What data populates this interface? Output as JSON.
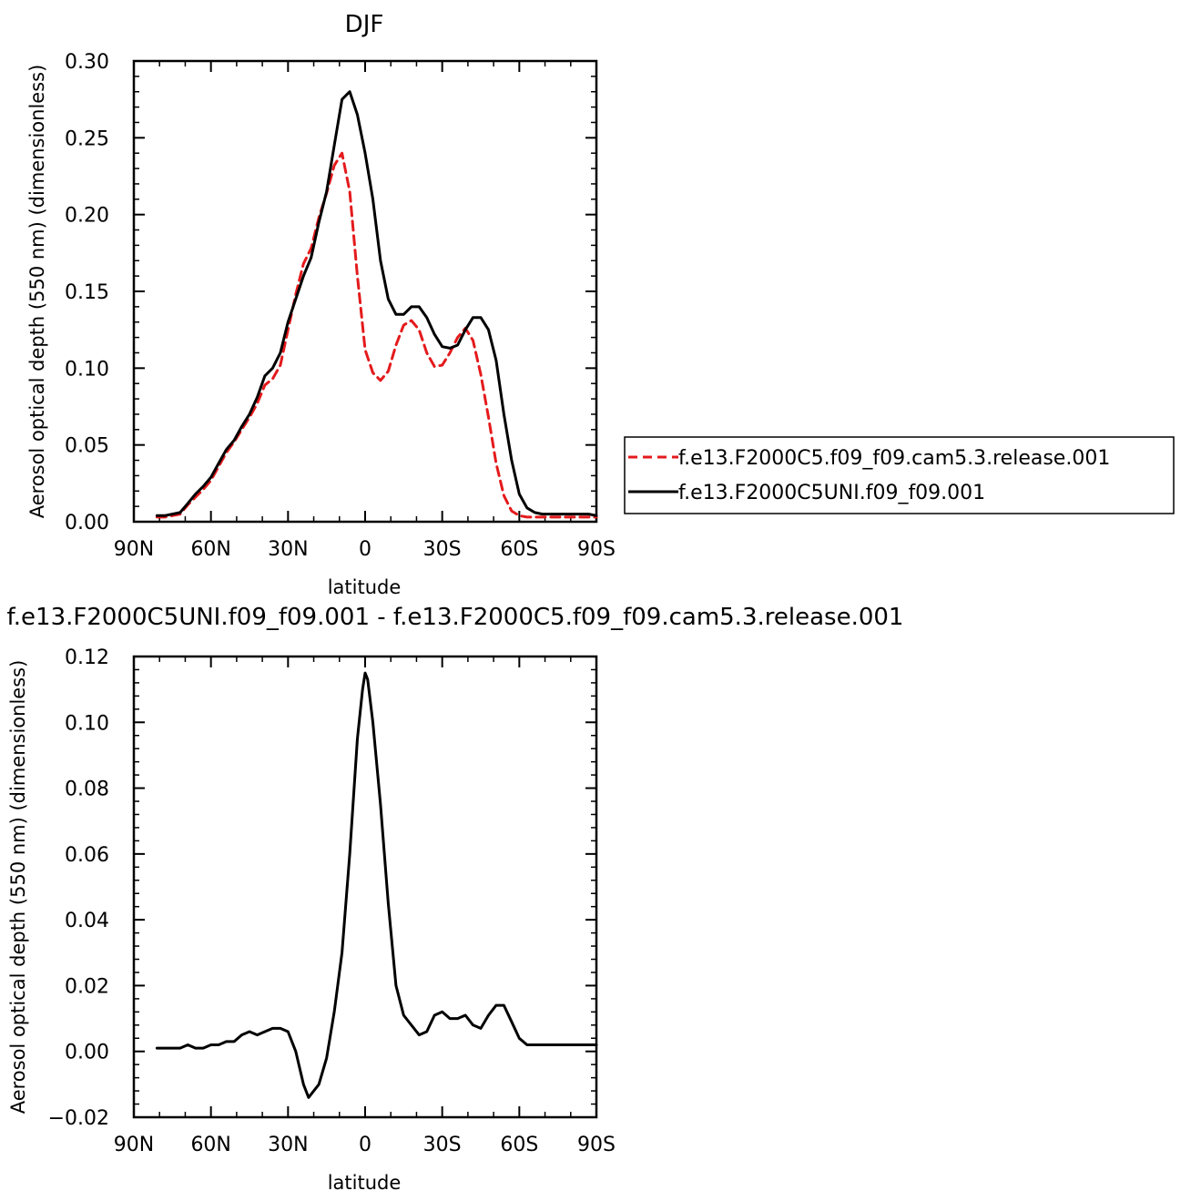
{
  "chart_data": [
    {
      "type": "line",
      "title": "DJF",
      "xlabel": "latitude",
      "ylabel": "Aerosol optical depth (550 nm) (dimensionless)",
      "xlim": [
        90,
        -90
      ],
      "ylim": [
        0,
        0.3
      ],
      "x_ticks": [
        90,
        60,
        30,
        0,
        -30,
        -60,
        -90
      ],
      "x_tick_labels": [
        "90N",
        "60N",
        "30N",
        "0",
        "30S",
        "60S",
        "90S"
      ],
      "y_ticks": [
        0,
        0.05,
        0.1,
        0.15,
        0.2,
        0.25,
        0.3
      ],
      "y_tick_labels": [
        "0.00",
        "0.05",
        "0.10",
        "0.15",
        "0.20",
        "0.25",
        "0.30"
      ],
      "legend_position": "right",
      "series": [
        {
          "name": "f.e13.F2000C5.f09_f09.cam5.3.release.001",
          "color": "#e41a1c",
          "dash": "dashed",
          "x": [
            81,
            78,
            75,
            72,
            69,
            66,
            63,
            60,
            57,
            54,
            51,
            48,
            45,
            42,
            39,
            36,
            33,
            30,
            27,
            24,
            21,
            18,
            15,
            12,
            9,
            6,
            3,
            0,
            -3,
            -6,
            -9,
            -12,
            -15,
            -18,
            -21,
            -24,
            -27,
            -30,
            -33,
            -36,
            -39,
            -42,
            -45,
            -48,
            -51,
            -54,
            -57,
            -60,
            -63,
            -66,
            -69,
            -72,
            -75,
            -78,
            -81,
            -84,
            -87,
            -90
          ],
          "values": [
            0.003,
            0.003,
            0.004,
            0.005,
            0.011,
            0.016,
            0.021,
            0.027,
            0.036,
            0.045,
            0.052,
            0.06,
            0.068,
            0.077,
            0.089,
            0.093,
            0.102,
            0.125,
            0.148,
            0.168,
            0.178,
            0.198,
            0.214,
            0.232,
            0.24,
            0.215,
            0.16,
            0.112,
            0.097,
            0.092,
            0.098,
            0.115,
            0.128,
            0.131,
            0.125,
            0.11,
            0.101,
            0.102,
            0.11,
            0.12,
            0.126,
            0.118,
            0.096,
            0.068,
            0.038,
            0.017,
            0.007,
            0.004,
            0.003,
            0.003,
            0.003,
            0.003,
            0.003,
            0.003,
            0.003,
            0.003,
            0.003,
            0.003
          ]
        },
        {
          "name": "f.e13.F2000C5UNI.f09_f09.001",
          "color": "#000000",
          "dash": "solid",
          "x": [
            81,
            78,
            75,
            72,
            69,
            66,
            63,
            60,
            57,
            54,
            51,
            48,
            45,
            42,
            39,
            36,
            33,
            30,
            27,
            24,
            21,
            18,
            15,
            12,
            9,
            6,
            3,
            0,
            -3,
            -6,
            -9,
            -12,
            -15,
            -18,
            -21,
            -24,
            -27,
            -30,
            -33,
            -36,
            -39,
            -42,
            -45,
            -48,
            -51,
            -54,
            -57,
            -60,
            -63,
            -66,
            -69,
            -72,
            -75,
            -78,
            -81,
            -84,
            -87,
            -90
          ],
          "values": [
            0.004,
            0.004,
            0.005,
            0.006,
            0.012,
            0.018,
            0.023,
            0.029,
            0.038,
            0.047,
            0.053,
            0.062,
            0.07,
            0.081,
            0.095,
            0.1,
            0.11,
            0.13,
            0.145,
            0.16,
            0.172,
            0.195,
            0.215,
            0.245,
            0.275,
            0.28,
            0.265,
            0.24,
            0.21,
            0.17,
            0.145,
            0.135,
            0.135,
            0.14,
            0.14,
            0.133,
            0.122,
            0.114,
            0.113,
            0.115,
            0.125,
            0.133,
            0.133,
            0.125,
            0.105,
            0.07,
            0.04,
            0.018,
            0.009,
            0.006,
            0.005,
            0.005,
            0.005,
            0.005,
            0.005,
            0.005,
            0.005,
            0.004
          ]
        }
      ]
    },
    {
      "type": "line",
      "title": "f.e13.F2000C5UNI.f09_f09.001 - f.e13.F2000C5.f09_f09.cam5.3.release.001",
      "xlabel": "latitude",
      "ylabel": "Aerosol optical depth (550 nm) (dimensionless)",
      "xlim": [
        90,
        -90
      ],
      "ylim": [
        -0.02,
        0.12
      ],
      "x_ticks": [
        90,
        60,
        30,
        0,
        -30,
        -60,
        -90
      ],
      "x_tick_labels": [
        "90N",
        "60N",
        "30N",
        "0",
        "30S",
        "60S",
        "90S"
      ],
      "y_ticks": [
        -0.02,
        0,
        0.02,
        0.04,
        0.06,
        0.08,
        0.1,
        0.12
      ],
      "y_tick_labels": [
        "−0.02",
        "0.00",
        "0.02",
        "0.04",
        "0.06",
        "0.08",
        "0.10",
        "0.12"
      ],
      "series": [
        {
          "color": "#000000",
          "dash": "solid",
          "x": [
            81,
            78,
            75,
            72,
            69,
            66,
            63,
            60,
            57,
            54,
            51,
            48,
            45,
            42,
            39,
            36,
            33,
            30,
            27,
            24,
            22,
            20,
            18,
            15,
            12,
            9,
            6,
            3,
            1,
            0,
            -1,
            -3,
            -6,
            -9,
            -12,
            -15,
            -18,
            -21,
            -24,
            -27,
            -30,
            -33,
            -36,
            -39,
            -42,
            -45,
            -48,
            -51,
            -54,
            -57,
            -60,
            -63,
            -66,
            -69,
            -72,
            -75,
            -78,
            -81,
            -84,
            -87,
            -90
          ],
          "values": [
            0.001,
            0.001,
            0.001,
            0.001,
            0.002,
            0.001,
            0.001,
            0.002,
            0.002,
            0.003,
            0.003,
            0.005,
            0.006,
            0.005,
            0.006,
            0.007,
            0.007,
            0.006,
            0.0,
            -0.01,
            -0.014,
            -0.012,
            -0.01,
            -0.002,
            0.012,
            0.03,
            0.06,
            0.095,
            0.11,
            0.115,
            0.113,
            0.1,
            0.075,
            0.045,
            0.02,
            0.011,
            0.008,
            0.005,
            0.006,
            0.011,
            0.012,
            0.01,
            0.01,
            0.011,
            0.008,
            0.007,
            0.011,
            0.014,
            0.014,
            0.009,
            0.004,
            0.002,
            0.002,
            0.002,
            0.002,
            0.002,
            0.002,
            0.002,
            0.002,
            0.002,
            0.002
          ]
        }
      ]
    }
  ]
}
